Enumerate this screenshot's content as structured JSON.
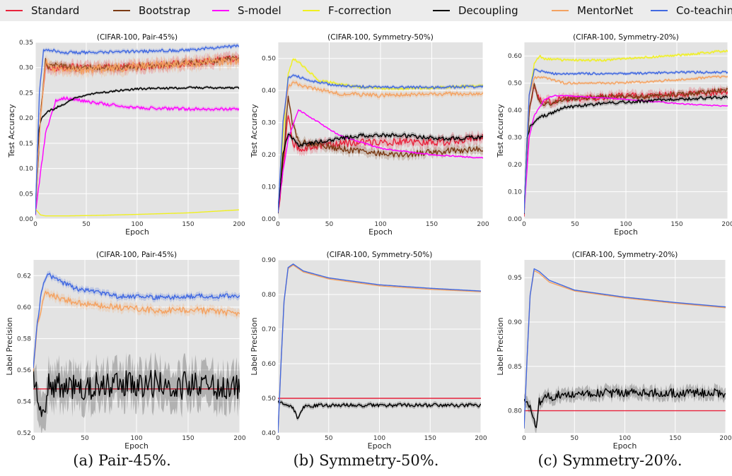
{
  "legend": [
    {
      "name": "Standard",
      "color": "#e8233c"
    },
    {
      "name": "Bootstrap",
      "color": "#7b3a14"
    },
    {
      "name": "S-model",
      "color": "#ff00ff"
    },
    {
      "name": "F-correction",
      "color": "#f0f020"
    },
    {
      "name": "Decoupling",
      "color": "#000000"
    },
    {
      "name": "MentorNet",
      "color": "#f4a261"
    },
    {
      "name": "Co-teaching",
      "color": "#4169e1"
    }
  ],
  "captions": [
    "(a) Pair-45%.",
    "(b) Symmetry-50%.",
    "(c) Symmetry-20%."
  ],
  "chart_data": [
    {
      "type": "line",
      "title": "(CIFAR-100, Pair-45%)",
      "xlabel": "Epoch",
      "ylabel": "Test Accuracy",
      "xlim": [
        0,
        200
      ],
      "ylim": [
        0,
        0.35
      ],
      "xticks": [
        0,
        50,
        100,
        150,
        200
      ],
      "yticks": [
        0.0,
        0.05,
        0.1,
        0.15,
        0.2,
        0.25,
        0.3,
        0.35
      ],
      "ytick_labels": [
        "0.00",
        "0.05",
        "0.10",
        "0.15",
        "0.20",
        "0.25",
        "0.30",
        "0.35"
      ],
      "series": [
        {
          "name": "Standard",
          "color": "#e8233c",
          "noise": 0.008,
          "x": [
            0,
            5,
            10,
            14,
            20,
            40,
            80,
            120,
            160,
            200
          ],
          "y": [
            0.01,
            0.2,
            0.31,
            0.3,
            0.3,
            0.3,
            0.3,
            0.305,
            0.31,
            0.318
          ]
        },
        {
          "name": "Bootstrap",
          "color": "#7b3a14",
          "noise": 0.005,
          "x": [
            0,
            5,
            10,
            12,
            20,
            40,
            80,
            120,
            160,
            200
          ],
          "y": [
            0.01,
            0.2,
            0.32,
            0.3,
            0.305,
            0.3,
            0.3,
            0.305,
            0.31,
            0.32
          ]
        },
        {
          "name": "S-model",
          "color": "#ff00ff",
          "noise": 0.003,
          "x": [
            0,
            5,
            10,
            20,
            30,
            60,
            100,
            150,
            200
          ],
          "y": [
            0.01,
            0.09,
            0.17,
            0.235,
            0.24,
            0.23,
            0.22,
            0.218,
            0.218
          ]
        },
        {
          "name": "F-correction",
          "color": "#f0f020",
          "noise": 0.0,
          "x": [
            0,
            5,
            10,
            30,
            60,
            100,
            150,
            200
          ],
          "y": [
            0.02,
            0.008,
            0.006,
            0.006,
            0.007,
            0.009,
            0.012,
            0.018
          ]
        },
        {
          "name": "Decoupling",
          "color": "#000000",
          "noise": 0.002,
          "x": [
            0,
            3,
            6,
            10,
            20,
            40,
            60,
            100,
            150,
            200
          ],
          "y": [
            0.01,
            0.17,
            0.2,
            0.21,
            0.22,
            0.24,
            0.25,
            0.258,
            0.26,
            0.26
          ]
        },
        {
          "name": "MentorNet",
          "color": "#f4a261",
          "noise": 0.009,
          "x": [
            0,
            5,
            10,
            14,
            20,
            40,
            80,
            120,
            160,
            200
          ],
          "y": [
            0.01,
            0.2,
            0.31,
            0.3,
            0.3,
            0.295,
            0.3,
            0.305,
            0.31,
            0.315
          ]
        },
        {
          "name": "Co-teaching",
          "color": "#4169e1",
          "noise": 0.003,
          "x": [
            0,
            4,
            8,
            15,
            30,
            60,
            100,
            150,
            200
          ],
          "y": [
            0.01,
            0.25,
            0.335,
            0.335,
            0.33,
            0.33,
            0.332,
            0.335,
            0.343
          ]
        }
      ]
    },
    {
      "type": "line",
      "title": "(CIFAR-100, Symmetry-50%)",
      "xlabel": "Epoch",
      "ylabel": "Test Accuracy",
      "xlim": [
        0,
        200
      ],
      "ylim": [
        0,
        0.55
      ],
      "xticks": [
        0,
        50,
        100,
        150,
        200
      ],
      "yticks": [
        0.0,
        0.1,
        0.2,
        0.3,
        0.4,
        0.5
      ],
      "ytick_labels": [
        "0.00",
        "0.10",
        "0.20",
        "0.30",
        "0.40",
        "0.50"
      ],
      "series": [
        {
          "name": "Standard",
          "color": "#e8233c",
          "noise": 0.012,
          "x": [
            0,
            5,
            10,
            14,
            20,
            40,
            80,
            120,
            160,
            200
          ],
          "y": [
            0.02,
            0.15,
            0.33,
            0.24,
            0.22,
            0.23,
            0.24,
            0.24,
            0.24,
            0.255
          ]
        },
        {
          "name": "Bootstrap",
          "color": "#7b3a14",
          "noise": 0.01,
          "x": [
            0,
            5,
            10,
            14,
            20,
            40,
            80,
            120,
            160,
            200
          ],
          "y": [
            0.02,
            0.18,
            0.385,
            0.3,
            0.24,
            0.23,
            0.21,
            0.2,
            0.21,
            0.22
          ]
        },
        {
          "name": "S-model",
          "color": "#ff00ff",
          "noise": 0.002,
          "x": [
            0,
            5,
            10,
            20,
            30,
            60,
            100,
            150,
            200
          ],
          "y": [
            0.02,
            0.15,
            0.25,
            0.34,
            0.32,
            0.26,
            0.22,
            0.2,
            0.19
          ]
        },
        {
          "name": "F-correction",
          "color": "#f0f020",
          "noise": 0.004,
          "x": [
            0,
            5,
            10,
            15,
            20,
            40,
            80,
            120,
            160,
            200
          ],
          "y": [
            0.02,
            0.25,
            0.45,
            0.5,
            0.49,
            0.43,
            0.41,
            0.405,
            0.41,
            0.415
          ]
        },
        {
          "name": "Decoupling",
          "color": "#000000",
          "noise": 0.006,
          "x": [
            0,
            5,
            10,
            14,
            20,
            40,
            80,
            120,
            160,
            200
          ],
          "y": [
            0.02,
            0.2,
            0.27,
            0.25,
            0.23,
            0.24,
            0.26,
            0.26,
            0.25,
            0.255
          ]
        },
        {
          "name": "MentorNet",
          "color": "#f4a261",
          "noise": 0.006,
          "x": [
            0,
            5,
            10,
            15,
            30,
            60,
            100,
            150,
            200
          ],
          "y": [
            0.02,
            0.3,
            0.41,
            0.425,
            0.41,
            0.39,
            0.385,
            0.39,
            0.39
          ]
        },
        {
          "name": "Co-teaching",
          "color": "#4169e1",
          "noise": 0.004,
          "x": [
            0,
            5,
            10,
            15,
            30,
            60,
            100,
            150,
            200
          ],
          "y": [
            0.02,
            0.3,
            0.44,
            0.45,
            0.43,
            0.415,
            0.41,
            0.41,
            0.412
          ]
        }
      ]
    },
    {
      "type": "line",
      "title": "(CIFAR-100, Symmetry-20%)",
      "xlabel": "Epoch",
      "ylabel": "Test Accuracy",
      "xlim": [
        0,
        200
      ],
      "ylim": [
        0,
        0.65
      ],
      "xticks": [
        0,
        50,
        100,
        150,
        200
      ],
      "yticks": [
        0.0,
        0.1,
        0.2,
        0.3,
        0.4,
        0.5,
        0.6
      ],
      "ytick_labels": [
        "0.00",
        "0.10",
        "0.20",
        "0.30",
        "0.40",
        "0.50",
        "0.60"
      ],
      "series": [
        {
          "name": "Standard",
          "color": "#e8233c",
          "noise": 0.012,
          "x": [
            0,
            5,
            10,
            15,
            20,
            40,
            80,
            120,
            160,
            200
          ],
          "y": [
            0.02,
            0.4,
            0.49,
            0.44,
            0.43,
            0.44,
            0.45,
            0.455,
            0.46,
            0.47
          ]
        },
        {
          "name": "Bootstrap",
          "color": "#7b3a14",
          "noise": 0.008,
          "x": [
            0,
            5,
            10,
            15,
            20,
            40,
            80,
            120,
            160,
            200
          ],
          "y": [
            0.02,
            0.4,
            0.5,
            0.43,
            0.42,
            0.44,
            0.45,
            0.45,
            0.46,
            0.475
          ]
        },
        {
          "name": "S-model",
          "color": "#ff00ff",
          "noise": 0.002,
          "x": [
            0,
            5,
            10,
            20,
            30,
            60,
            100,
            150,
            200
          ],
          "y": [
            0.02,
            0.3,
            0.38,
            0.44,
            0.455,
            0.45,
            0.44,
            0.425,
            0.415
          ]
        },
        {
          "name": "F-correction",
          "color": "#f0f020",
          "noise": 0.004,
          "x": [
            0,
            5,
            10,
            15,
            20,
            40,
            80,
            120,
            160,
            200
          ],
          "y": [
            0.02,
            0.45,
            0.57,
            0.6,
            0.59,
            0.585,
            0.585,
            0.595,
            0.605,
            0.62
          ]
        },
        {
          "name": "Decoupling",
          "color": "#000000",
          "noise": 0.006,
          "x": [
            0,
            3,
            6,
            10,
            20,
            40,
            60,
            100,
            150,
            200
          ],
          "y": [
            0.02,
            0.3,
            0.34,
            0.36,
            0.38,
            0.41,
            0.42,
            0.43,
            0.44,
            0.45
          ]
        },
        {
          "name": "MentorNet",
          "color": "#f4a261",
          "noise": 0.004,
          "x": [
            0,
            5,
            10,
            20,
            40,
            80,
            120,
            160,
            200
          ],
          "y": [
            0.02,
            0.45,
            0.52,
            0.52,
            0.5,
            0.5,
            0.505,
            0.515,
            0.525
          ]
        },
        {
          "name": "Co-teaching",
          "color": "#4169e1",
          "noise": 0.004,
          "x": [
            0,
            5,
            10,
            15,
            30,
            60,
            100,
            150,
            200
          ],
          "y": [
            0.02,
            0.46,
            0.55,
            0.545,
            0.535,
            0.535,
            0.535,
            0.54,
            0.54
          ]
        }
      ]
    },
    {
      "type": "line",
      "title": "(CIFAR-100, Pair-45%)",
      "xlabel": "Epoch",
      "ylabel": "Label Precision",
      "xlim": [
        0,
        200
      ],
      "ylim": [
        0.52,
        0.63
      ],
      "xticks": [
        0,
        50,
        100,
        150,
        200
      ],
      "yticks": [
        0.52,
        0.54,
        0.56,
        0.58,
        0.6,
        0.62
      ],
      "ytick_labels": [
        "0.52",
        "0.54",
        "0.56",
        "0.58",
        "0.60",
        "0.62"
      ],
      "series": [
        {
          "name": "Standard",
          "color": "#e8233c",
          "noise": 0.0,
          "x": [
            0,
            200
          ],
          "y": [
            0.548,
            0.548
          ]
        },
        {
          "name": "Decoupling",
          "color": "#000000",
          "noise": 0.009,
          "x": [
            0,
            5,
            10,
            15,
            50,
            100,
            150,
            200
          ],
          "y": [
            0.56,
            0.545,
            0.535,
            0.55,
            0.55,
            0.552,
            0.55,
            0.55
          ]
        },
        {
          "name": "MentorNet",
          "color": "#f4a261",
          "noise": 0.002,
          "x": [
            0,
            4,
            8,
            12,
            20,
            40,
            80,
            120,
            160,
            200
          ],
          "y": [
            0.56,
            0.59,
            0.6,
            0.609,
            0.607,
            0.603,
            0.6,
            0.598,
            0.598,
            0.596
          ]
        },
        {
          "name": "Co-teaching",
          "color": "#4169e1",
          "noise": 0.0015,
          "x": [
            0,
            4,
            8,
            14,
            20,
            40,
            80,
            120,
            160,
            200
          ],
          "y": [
            0.56,
            0.59,
            0.61,
            0.622,
            0.618,
            0.612,
            0.607,
            0.606,
            0.607,
            0.607
          ]
        }
      ]
    },
    {
      "type": "line",
      "title": "(CIFAR-100, Symmetry-50%)",
      "xlabel": "Epoch",
      "ylabel": "Label Precision",
      "xlim": [
        0,
        200
      ],
      "ylim": [
        0.4,
        0.9
      ],
      "xticks": [
        0,
        50,
        100,
        150,
        200
      ],
      "yticks": [
        0.4,
        0.5,
        0.6,
        0.7,
        0.8,
        0.9
      ],
      "ytick_labels": [
        "0.40",
        "0.50",
        "0.60",
        "0.70",
        "0.80",
        "0.90"
      ],
      "series": [
        {
          "name": "Standard",
          "color": "#e8233c",
          "noise": 0.0,
          "x": [
            0,
            200
          ],
          "y": [
            0.5,
            0.5
          ]
        },
        {
          "name": "Decoupling",
          "color": "#000000",
          "noise": 0.005,
          "x": [
            0,
            5,
            10,
            15,
            20,
            25,
            40,
            80,
            120,
            160,
            200
          ],
          "y": [
            0.49,
            0.485,
            0.48,
            0.47,
            0.44,
            0.475,
            0.48,
            0.48,
            0.48,
            0.48,
            0.48
          ]
        },
        {
          "name": "MentorNet",
          "color": "#f4a261",
          "noise": 0.0,
          "x": [
            0,
            3,
            6,
            10,
            15,
            25,
            50,
            100,
            150,
            200
          ],
          "y": [
            0.4,
            0.6,
            0.78,
            0.875,
            0.885,
            0.865,
            0.845,
            0.825,
            0.815,
            0.808
          ]
        },
        {
          "name": "Co-teaching",
          "color": "#4169e1",
          "noise": 0.0,
          "x": [
            0,
            3,
            6,
            10,
            15,
            25,
            50,
            100,
            150,
            200
          ],
          "y": [
            0.4,
            0.6,
            0.78,
            0.878,
            0.888,
            0.868,
            0.848,
            0.828,
            0.818,
            0.81
          ]
        }
      ]
    },
    {
      "type": "line",
      "title": "(CIFAR-100, Symmetry-20%)",
      "xlabel": "Epoch",
      "ylabel": "Label Precision",
      "xlim": [
        0,
        200
      ],
      "ylim": [
        0.775,
        0.97
      ],
      "xticks": [
        0,
        50,
        100,
        150,
        200
      ],
      "yticks": [
        0.8,
        0.85,
        0.9,
        0.95
      ],
      "ytick_labels": [
        "0.80",
        "0.85",
        "0.90",
        "0.95"
      ],
      "series": [
        {
          "name": "Standard",
          "color": "#e8233c",
          "noise": 0.0,
          "x": [
            0,
            200
          ],
          "y": [
            0.8,
            0.8
          ]
        },
        {
          "name": "Decoupling",
          "color": "#000000",
          "noise": 0.005,
          "x": [
            0,
            5,
            8,
            12,
            15,
            20,
            50,
            100,
            150,
            200
          ],
          "y": [
            0.81,
            0.805,
            0.8,
            0.78,
            0.81,
            0.815,
            0.82,
            0.82,
            0.82,
            0.82
          ]
        },
        {
          "name": "MentorNet",
          "color": "#f4a261",
          "noise": 0.0,
          "x": [
            0,
            3,
            6,
            10,
            15,
            25,
            50,
            100,
            150,
            200
          ],
          "y": [
            0.78,
            0.86,
            0.93,
            0.958,
            0.955,
            0.945,
            0.935,
            0.927,
            0.921,
            0.916
          ]
        },
        {
          "name": "Co-teaching",
          "color": "#4169e1",
          "noise": 0.0,
          "x": [
            0,
            3,
            6,
            10,
            15,
            25,
            50,
            100,
            150,
            200
          ],
          "y": [
            0.78,
            0.86,
            0.93,
            0.96,
            0.957,
            0.947,
            0.936,
            0.928,
            0.922,
            0.917
          ]
        }
      ]
    }
  ]
}
